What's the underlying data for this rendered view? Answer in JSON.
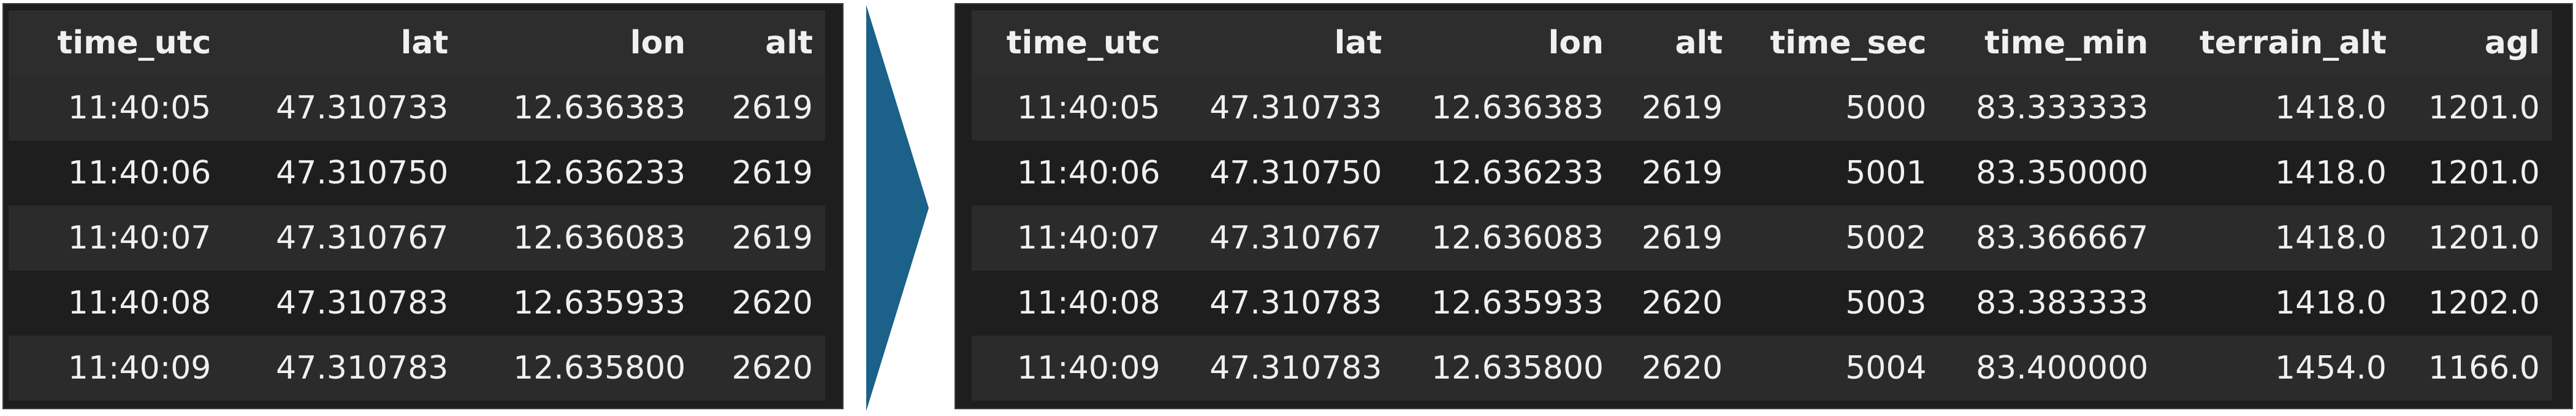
{
  "left_table": {
    "columns": [
      "time_utc",
      "lat",
      "lon",
      "alt"
    ],
    "rows": [
      [
        "11:40:05",
        "47.310733",
        "12.636383",
        "2619"
      ],
      [
        "11:40:06",
        "47.310750",
        "12.636233",
        "2619"
      ],
      [
        "11:40:07",
        "47.310767",
        "12.636083",
        "2619"
      ],
      [
        "11:40:08",
        "47.310783",
        "12.635933",
        "2620"
      ],
      [
        "11:40:09",
        "47.310783",
        "12.635800",
        "2620"
      ]
    ]
  },
  "right_table": {
    "columns": [
      "time_utc",
      "lat",
      "lon",
      "alt",
      "time_sec",
      "time_min",
      "terrain_alt",
      "agl"
    ],
    "rows": [
      [
        "11:40:05",
        "47.310733",
        "12.636383",
        "2619",
        "5000",
        "83.333333",
        "1418.0",
        "1201.0"
      ],
      [
        "11:40:06",
        "47.310750",
        "12.636233",
        "2619",
        "5001",
        "83.350000",
        "1418.0",
        "1201.0"
      ],
      [
        "11:40:07",
        "47.310767",
        "12.636083",
        "2619",
        "5002",
        "83.366667",
        "1418.0",
        "1201.0"
      ],
      [
        "11:40:08",
        "47.310783",
        "12.635933",
        "2620",
        "5003",
        "83.383333",
        "1418.0",
        "1202.0"
      ],
      [
        "11:40:09",
        "47.310783",
        "12.635800",
        "2620",
        "5004",
        "83.400000",
        "1454.0",
        "1166.0"
      ]
    ]
  },
  "colors": {
    "panel_bg": "#1e1e1e",
    "header_bg": "#2d2d2d",
    "stripe_bg": "#2b2b2b",
    "text": "#f0f0f0",
    "arrow": "#1b6189"
  },
  "icons": {
    "transform_arrow": "triangle-right-arrow-icon"
  }
}
